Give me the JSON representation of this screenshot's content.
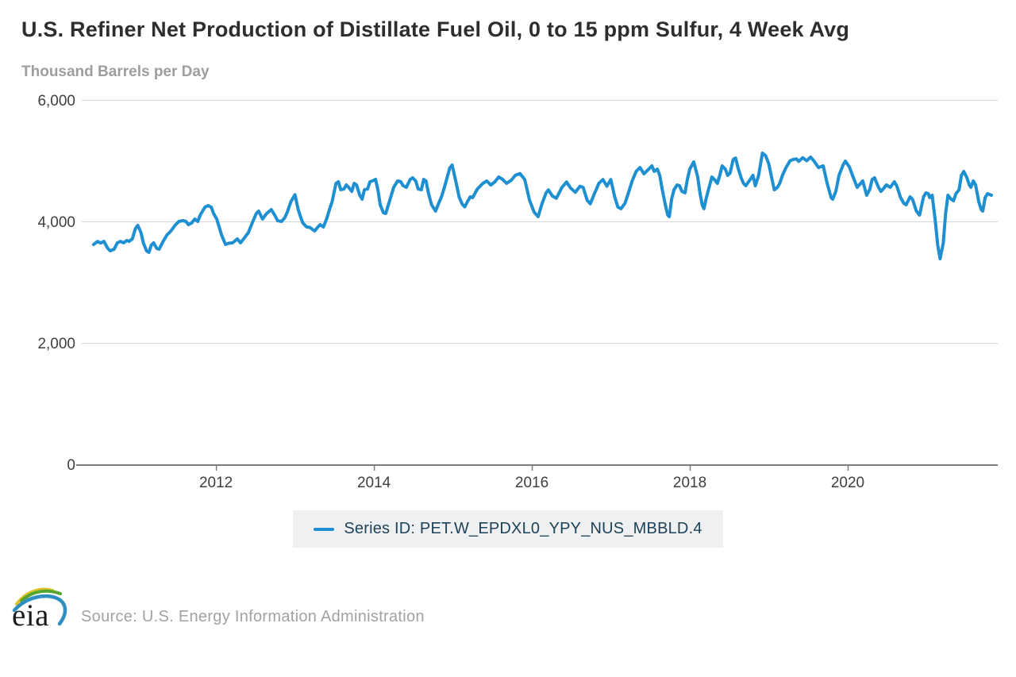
{
  "header": {
    "title": "U.S. Refiner Net Production of Distillate Fuel Oil, 0 to 15 ppm Sulfur, 4 Week Avg",
    "subtitle": "Thousand Barrels per Day"
  },
  "legend": {
    "label": "Series ID: PET.W_EPDXL0_YPY_NUS_MBBLD.4"
  },
  "footer": {
    "logo_text": "eia",
    "source": "Source: U.S. Energy Information Administration"
  },
  "colors": {
    "series": "#1e8fd0",
    "grid": "#d7d7d7",
    "axis": "#7d7d7d",
    "tick_text": "#3f3f3f",
    "title_text": "#2e2e2e",
    "subtitle_text": "#9e9e9e",
    "legend_bg": "#eef0f2",
    "legend_text": "#1e4257",
    "source_text": "#a2a2a2",
    "logo_green": "#56a531",
    "logo_yellow": "#dfc226",
    "logo_blue": "#2e8fc0"
  },
  "chart_data": {
    "type": "line",
    "title": "U.S. Refiner Net Production of Distillate Fuel Oil, 0 to 15 ppm Sulfur, 4 Week Avg",
    "xlabel": "",
    "ylabel": "Thousand Barrels per Day",
    "xlim": [
      2010.3,
      2021.9
    ],
    "ylim": [
      0,
      6000
    ],
    "x_ticks": [
      2012,
      2014,
      2016,
      2018,
      2020
    ],
    "y_ticks": [
      0,
      2000,
      4000,
      6000
    ],
    "grid": "horizontal",
    "legend_position": "bottom",
    "series": [
      {
        "name": "Series ID: PET.W_EPDXL0_YPY_NUS_MBBLD.4",
        "color": "#1e8fd0",
        "points": [
          [
            2010.45,
            3620
          ],
          [
            2010.5,
            3670
          ],
          [
            2010.54,
            3645
          ],
          [
            2010.58,
            3672
          ],
          [
            2010.63,
            3556
          ],
          [
            2010.66,
            3516
          ],
          [
            2010.71,
            3542
          ],
          [
            2010.75,
            3647
          ],
          [
            2010.79,
            3672
          ],
          [
            2010.83,
            3647
          ],
          [
            2010.87,
            3686
          ],
          [
            2010.9,
            3672
          ],
          [
            2010.94,
            3712
          ],
          [
            2010.98,
            3882
          ],
          [
            2011.01,
            3934
          ],
          [
            2011.05,
            3817
          ],
          [
            2011.08,
            3647
          ],
          [
            2011.12,
            3516
          ],
          [
            2011.15,
            3490
          ],
          [
            2011.18,
            3608
          ],
          [
            2011.21,
            3647
          ],
          [
            2011.25,
            3556
          ],
          [
            2011.28,
            3542
          ],
          [
            2011.33,
            3672
          ],
          [
            2011.38,
            3778
          ],
          [
            2011.43,
            3843
          ],
          [
            2011.48,
            3934
          ],
          [
            2011.53,
            4000
          ],
          [
            2011.58,
            4013
          ],
          [
            2011.62,
            4000
          ],
          [
            2011.65,
            3947
          ],
          [
            2011.69,
            3973
          ],
          [
            2011.73,
            4039
          ],
          [
            2011.77,
            4000
          ],
          [
            2011.8,
            4105
          ],
          [
            2011.86,
            4235
          ],
          [
            2011.9,
            4261
          ],
          [
            2011.94,
            4235
          ],
          [
            2011.97,
            4131
          ],
          [
            2012.01,
            4039
          ],
          [
            2012.04,
            3908
          ],
          [
            2012.07,
            3778
          ],
          [
            2012.12,
            3621
          ],
          [
            2012.16,
            3640
          ],
          [
            2012.21,
            3647
          ],
          [
            2012.27,
            3712
          ],
          [
            2012.31,
            3647
          ],
          [
            2012.36,
            3730
          ],
          [
            2012.41,
            3817
          ],
          [
            2012.46,
            3980
          ],
          [
            2012.51,
            4131
          ],
          [
            2012.54,
            4170
          ],
          [
            2012.59,
            4039
          ],
          [
            2012.64,
            4130
          ],
          [
            2012.7,
            4196
          ],
          [
            2012.75,
            4090
          ],
          [
            2012.78,
            4013
          ],
          [
            2012.83,
            4000
          ],
          [
            2012.87,
            4060
          ],
          [
            2012.9,
            4144
          ],
          [
            2012.95,
            4330
          ],
          [
            2013.0,
            4440
          ],
          [
            2013.04,
            4200
          ],
          [
            2013.07,
            4078
          ],
          [
            2013.1,
            3973
          ],
          [
            2013.15,
            3908
          ],
          [
            2013.19,
            3900
          ],
          [
            2013.22,
            3869
          ],
          [
            2013.25,
            3843
          ],
          [
            2013.29,
            3908
          ],
          [
            2013.32,
            3947
          ],
          [
            2013.36,
            3908
          ],
          [
            2013.4,
            4039
          ],
          [
            2013.44,
            4209
          ],
          [
            2013.47,
            4326
          ],
          [
            2013.52,
            4627
          ],
          [
            2013.55,
            4653
          ],
          [
            2013.58,
            4522
          ],
          [
            2013.62,
            4535
          ],
          [
            2013.65,
            4601
          ],
          [
            2013.68,
            4562
          ],
          [
            2013.72,
            4496
          ],
          [
            2013.75,
            4627
          ],
          [
            2013.78,
            4601
          ],
          [
            2013.82,
            4431
          ],
          [
            2013.85,
            4366
          ],
          [
            2013.88,
            4522
          ],
          [
            2013.92,
            4535
          ],
          [
            2013.95,
            4653
          ],
          [
            2013.98,
            4667
          ],
          [
            2014.02,
            4693
          ],
          [
            2014.05,
            4522
          ],
          [
            2014.08,
            4275
          ],
          [
            2014.12,
            4144
          ],
          [
            2014.15,
            4131
          ],
          [
            2014.18,
            4261
          ],
          [
            2014.22,
            4431
          ],
          [
            2014.25,
            4562
          ],
          [
            2014.3,
            4667
          ],
          [
            2014.34,
            4653
          ],
          [
            2014.37,
            4588
          ],
          [
            2014.41,
            4562
          ],
          [
            2014.46,
            4693
          ],
          [
            2014.49,
            4719
          ],
          [
            2014.53,
            4667
          ],
          [
            2014.56,
            4535
          ],
          [
            2014.6,
            4522
          ],
          [
            2014.63,
            4693
          ],
          [
            2014.66,
            4667
          ],
          [
            2014.69,
            4470
          ],
          [
            2014.73,
            4275
          ],
          [
            2014.78,
            4170
          ],
          [
            2014.82,
            4300
          ],
          [
            2014.86,
            4420
          ],
          [
            2014.91,
            4640
          ],
          [
            2014.96,
            4880
          ],
          [
            2014.99,
            4930
          ],
          [
            2015.03,
            4700
          ],
          [
            2015.08,
            4400
          ],
          [
            2015.12,
            4280
          ],
          [
            2015.15,
            4240
          ],
          [
            2015.19,
            4340
          ],
          [
            2015.22,
            4405
          ],
          [
            2015.25,
            4392
          ],
          [
            2015.31,
            4535
          ],
          [
            2015.38,
            4627
          ],
          [
            2015.43,
            4667
          ],
          [
            2015.48,
            4600
          ],
          [
            2015.53,
            4650
          ],
          [
            2015.58,
            4732
          ],
          [
            2015.63,
            4693
          ],
          [
            2015.68,
            4627
          ],
          [
            2015.74,
            4680
          ],
          [
            2015.79,
            4760
          ],
          [
            2015.85,
            4790
          ],
          [
            2015.91,
            4690
          ],
          [
            2015.97,
            4350
          ],
          [
            2016.03,
            4150
          ],
          [
            2016.08,
            4080
          ],
          [
            2016.13,
            4300
          ],
          [
            2016.18,
            4470
          ],
          [
            2016.21,
            4520
          ],
          [
            2016.26,
            4420
          ],
          [
            2016.31,
            4380
          ],
          [
            2016.38,
            4560
          ],
          [
            2016.44,
            4650
          ],
          [
            2016.49,
            4550
          ],
          [
            2016.55,
            4480
          ],
          [
            2016.61,
            4580
          ],
          [
            2016.65,
            4560
          ],
          [
            2016.7,
            4350
          ],
          [
            2016.74,
            4290
          ],
          [
            2016.79,
            4450
          ],
          [
            2016.85,
            4630
          ],
          [
            2016.9,
            4690
          ],
          [
            2016.95,
            4580
          ],
          [
            2017.0,
            4690
          ],
          [
            2017.05,
            4400
          ],
          [
            2017.09,
            4235
          ],
          [
            2017.13,
            4210
          ],
          [
            2017.18,
            4300
          ],
          [
            2017.22,
            4457
          ],
          [
            2017.27,
            4667
          ],
          [
            2017.32,
            4823
          ],
          [
            2017.37,
            4888
          ],
          [
            2017.42,
            4784
          ],
          [
            2017.47,
            4849
          ],
          [
            2017.52,
            4915
          ],
          [
            2017.55,
            4823
          ],
          [
            2017.59,
            4862
          ],
          [
            2017.62,
            4758
          ],
          [
            2017.65,
            4535
          ],
          [
            2017.69,
            4275
          ],
          [
            2017.72,
            4105
          ],
          [
            2017.74,
            4078
          ],
          [
            2017.77,
            4366
          ],
          [
            2017.8,
            4522
          ],
          [
            2017.84,
            4601
          ],
          [
            2017.87,
            4588
          ],
          [
            2017.9,
            4496
          ],
          [
            2017.94,
            4470
          ],
          [
            2017.97,
            4693
          ],
          [
            2018.0,
            4862
          ],
          [
            2018.05,
            4980
          ],
          [
            2018.1,
            4732
          ],
          [
            2018.13,
            4457
          ],
          [
            2018.16,
            4261
          ],
          [
            2018.18,
            4209
          ],
          [
            2018.21,
            4392
          ],
          [
            2018.25,
            4588
          ],
          [
            2018.28,
            4732
          ],
          [
            2018.31,
            4693
          ],
          [
            2018.35,
            4627
          ],
          [
            2018.38,
            4758
          ],
          [
            2018.41,
            4915
          ],
          [
            2018.45,
            4862
          ],
          [
            2018.48,
            4758
          ],
          [
            2018.51,
            4797
          ],
          [
            2018.55,
            5019
          ],
          [
            2018.58,
            5045
          ],
          [
            2018.61,
            4888
          ],
          [
            2018.65,
            4719
          ],
          [
            2018.68,
            4627
          ],
          [
            2018.71,
            4588
          ],
          [
            2018.76,
            4680
          ],
          [
            2018.8,
            4760
          ],
          [
            2018.83,
            4588
          ],
          [
            2018.87,
            4750
          ],
          [
            2018.92,
            5124
          ],
          [
            2018.96,
            5085
          ],
          [
            2019.0,
            4950
          ],
          [
            2019.04,
            4700
          ],
          [
            2019.07,
            4522
          ],
          [
            2019.11,
            4560
          ],
          [
            2019.14,
            4630
          ],
          [
            2019.18,
            4780
          ],
          [
            2019.22,
            4890
          ],
          [
            2019.27,
            5000
          ],
          [
            2019.31,
            5020
          ],
          [
            2019.35,
            5030
          ],
          [
            2019.38,
            4990
          ],
          [
            2019.43,
            5050
          ],
          [
            2019.48,
            5000
          ],
          [
            2019.53,
            5060
          ],
          [
            2019.57,
            5000
          ],
          [
            2019.63,
            4888
          ],
          [
            2019.69,
            4915
          ],
          [
            2019.74,
            4627
          ],
          [
            2019.79,
            4392
          ],
          [
            2019.81,
            4366
          ],
          [
            2019.85,
            4500
          ],
          [
            2019.89,
            4758
          ],
          [
            2019.94,
            4927
          ],
          [
            2019.97,
            4993
          ],
          [
            2020.02,
            4900
          ],
          [
            2020.06,
            4758
          ],
          [
            2020.12,
            4562
          ],
          [
            2020.19,
            4667
          ],
          [
            2020.24,
            4431
          ],
          [
            2020.28,
            4530
          ],
          [
            2020.31,
            4693
          ],
          [
            2020.34,
            4719
          ],
          [
            2020.39,
            4562
          ],
          [
            2020.42,
            4496
          ],
          [
            2020.46,
            4550
          ],
          [
            2020.49,
            4601
          ],
          [
            2020.54,
            4562
          ],
          [
            2020.59,
            4653
          ],
          [
            2020.62,
            4588
          ],
          [
            2020.67,
            4392
          ],
          [
            2020.71,
            4300
          ],
          [
            2020.74,
            4275
          ],
          [
            2020.79,
            4405
          ],
          [
            2020.82,
            4366
          ],
          [
            2020.87,
            4170
          ],
          [
            2020.91,
            4105
          ],
          [
            2020.96,
            4405
          ],
          [
            2020.99,
            4470
          ],
          [
            2021.02,
            4457
          ],
          [
            2021.04,
            4392
          ],
          [
            2021.07,
            4431
          ],
          [
            2021.11,
            4000
          ],
          [
            2021.14,
            3608
          ],
          [
            2021.17,
            3385
          ],
          [
            2021.21,
            3647
          ],
          [
            2021.24,
            4131
          ],
          [
            2021.27,
            4431
          ],
          [
            2021.31,
            4366
          ],
          [
            2021.34,
            4340
          ],
          [
            2021.37,
            4457
          ],
          [
            2021.41,
            4522
          ],
          [
            2021.44,
            4758
          ],
          [
            2021.47,
            4823
          ],
          [
            2021.51,
            4719
          ],
          [
            2021.54,
            4601
          ],
          [
            2021.56,
            4562
          ],
          [
            2021.59,
            4667
          ],
          [
            2021.62,
            4601
          ],
          [
            2021.66,
            4326
          ],
          [
            2021.69,
            4196
          ],
          [
            2021.71,
            4170
          ],
          [
            2021.74,
            4392
          ],
          [
            2021.77,
            4457
          ],
          [
            2021.82,
            4431
          ]
        ]
      }
    ]
  }
}
